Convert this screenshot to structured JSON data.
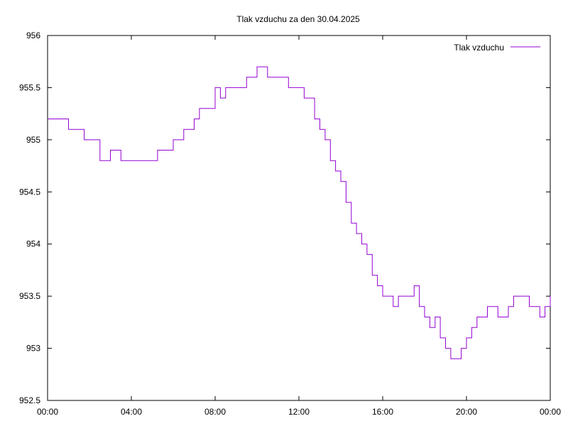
{
  "chart_data": {
    "type": "line",
    "title": "Tlak vzduchu za den 30.04.2025",
    "xlabel": "",
    "ylabel": "",
    "xlim": [
      "00:00",
      "24:00"
    ],
    "ylim": [
      952.5,
      956
    ],
    "x_ticks": [
      "00:00",
      "04:00",
      "08:00",
      "12:00",
      "16:00",
      "20:00",
      "00:00"
    ],
    "y_ticks": [
      "952.5",
      "953",
      "953.5",
      "954",
      "954.5",
      "955",
      "955.5",
      "956"
    ],
    "grid": false,
    "legend": "top-right",
    "series": [
      {
        "name": "Tlak vzduchu",
        "color": "#9400d3",
        "x": [
          "00:00",
          "01:00",
          "01:45",
          "02:30",
          "03:00",
          "03:30",
          "04:00",
          "05:00",
          "05:15",
          "05:30",
          "06:00",
          "06:30",
          "07:00",
          "07:15",
          "07:30",
          "08:00",
          "08:15",
          "08:30",
          "09:00",
          "09:30",
          "09:45",
          "10:00",
          "10:30",
          "10:45",
          "11:00",
          "11:30",
          "11:45",
          "12:00",
          "12:15",
          "12:30",
          "12:45",
          "13:00",
          "13:15",
          "13:30",
          "13:45",
          "14:00",
          "14:15",
          "14:30",
          "14:45",
          "15:00",
          "15:15",
          "15:30",
          "15:45",
          "16:00",
          "16:15",
          "16:30",
          "16:45",
          "17:00",
          "17:30",
          "17:45",
          "18:00",
          "18:15",
          "18:30",
          "18:45",
          "19:00",
          "19:15",
          "19:30",
          "19:45",
          "20:00",
          "20:15",
          "20:30",
          "20:45",
          "21:00",
          "21:30",
          "22:00",
          "22:15",
          "22:30",
          "23:00",
          "23:30",
          "23:45",
          "24:00"
        ],
        "y": [
          955.2,
          955.1,
          955.0,
          954.8,
          954.9,
          954.8,
          954.8,
          954.8,
          954.9,
          954.9,
          955.0,
          955.1,
          955.2,
          955.3,
          955.3,
          955.5,
          955.4,
          955.5,
          955.5,
          955.6,
          955.6,
          955.7,
          955.6,
          955.6,
          955.6,
          955.5,
          955.5,
          955.5,
          955.4,
          955.4,
          955.2,
          955.1,
          955.0,
          954.8,
          954.7,
          954.6,
          954.4,
          954.2,
          954.1,
          954.0,
          953.9,
          953.7,
          953.6,
          953.5,
          953.5,
          953.4,
          953.5,
          953.5,
          953.6,
          953.4,
          953.3,
          953.2,
          953.3,
          953.1,
          953.0,
          952.9,
          952.9,
          953.0,
          953.1,
          953.2,
          953.3,
          953.3,
          953.4,
          953.3,
          953.4,
          953.5,
          953.5,
          953.4,
          953.3,
          953.4,
          953.5
        ]
      }
    ]
  }
}
